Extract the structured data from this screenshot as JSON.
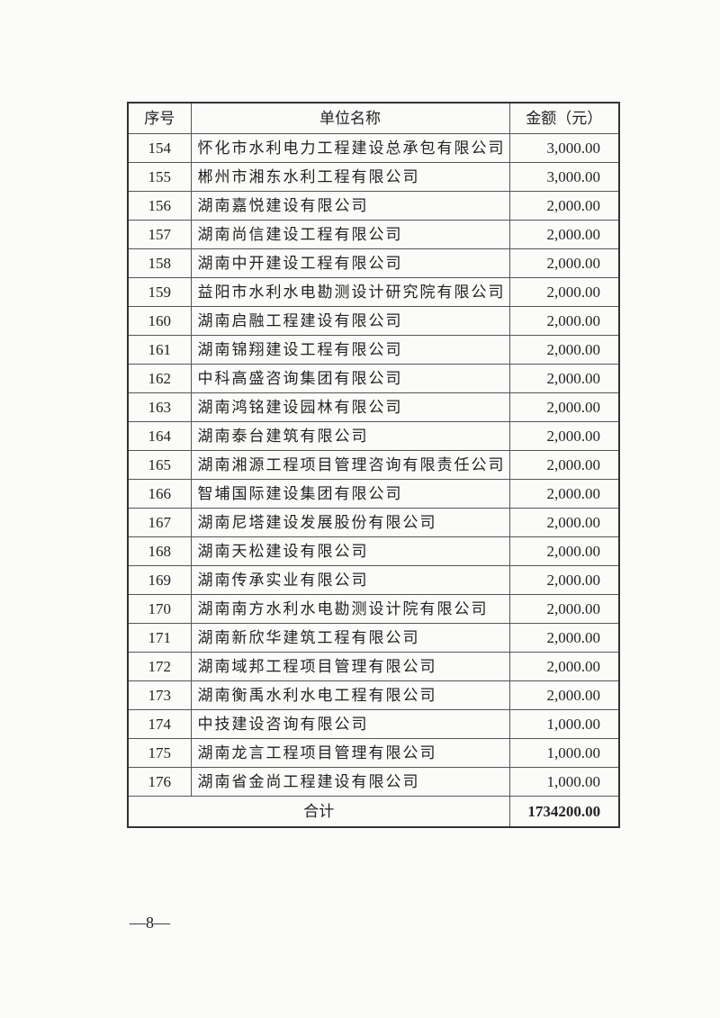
{
  "table": {
    "headers": {
      "seq": "序号",
      "name": "单位名称",
      "amount": "金额（元）"
    },
    "rows": [
      {
        "seq": "154",
        "name": "怀化市水利电力工程建设总承包有限公司",
        "amount": "3,000.00"
      },
      {
        "seq": "155",
        "name": "郴州市湘东水利工程有限公司",
        "amount": "3,000.00"
      },
      {
        "seq": "156",
        "name": "湖南嘉悦建设有限公司",
        "amount": "2,000.00"
      },
      {
        "seq": "157",
        "name": "湖南尚信建设工程有限公司",
        "amount": "2,000.00"
      },
      {
        "seq": "158",
        "name": "湖南中开建设工程有限公司",
        "amount": "2,000.00"
      },
      {
        "seq": "159",
        "name": "益阳市水利水电勘测设计研究院有限公司",
        "amount": "2,000.00"
      },
      {
        "seq": "160",
        "name": "湖南启融工程建设有限公司",
        "amount": "2,000.00"
      },
      {
        "seq": "161",
        "name": "湖南锦翔建设工程有限公司",
        "amount": "2,000.00"
      },
      {
        "seq": "162",
        "name": "中科高盛咨询集团有限公司",
        "amount": "2,000.00"
      },
      {
        "seq": "163",
        "name": "湖南鸿铭建设园林有限公司",
        "amount": "2,000.00"
      },
      {
        "seq": "164",
        "name": "湖南泰台建筑有限公司",
        "amount": "2,000.00"
      },
      {
        "seq": "165",
        "name": "湖南湘源工程项目管理咨询有限责任公司",
        "amount": "2,000.00"
      },
      {
        "seq": "166",
        "name": "智埔国际建设集团有限公司",
        "amount": "2,000.00"
      },
      {
        "seq": "167",
        "name": "湖南尼塔建设发展股份有限公司",
        "amount": "2,000.00"
      },
      {
        "seq": "168",
        "name": "湖南天松建设有限公司",
        "amount": "2,000.00"
      },
      {
        "seq": "169",
        "name": "湖南传承实业有限公司",
        "amount": "2,000.00"
      },
      {
        "seq": "170",
        "name": "湖南南方水利水电勘测设计院有限公司",
        "amount": "2,000.00"
      },
      {
        "seq": "171",
        "name": "湖南新欣华建筑工程有限公司",
        "amount": "2,000.00"
      },
      {
        "seq": "172",
        "name": "湖南域邦工程项目管理有限公司",
        "amount": "2,000.00"
      },
      {
        "seq": "173",
        "name": "湖南衡禹水利水电工程有限公司",
        "amount": "2,000.00"
      },
      {
        "seq": "174",
        "name": "中技建设咨询有限公司",
        "amount": "1,000.00"
      },
      {
        "seq": "175",
        "name": "湖南龙言工程项目管理有限公司",
        "amount": "1,000.00"
      },
      {
        "seq": "176",
        "name": "湖南省金尚工程建设有限公司",
        "amount": "1,000.00"
      }
    ],
    "total": {
      "label": "合计",
      "amount": "1734200.00"
    }
  },
  "page_number": "—8—"
}
